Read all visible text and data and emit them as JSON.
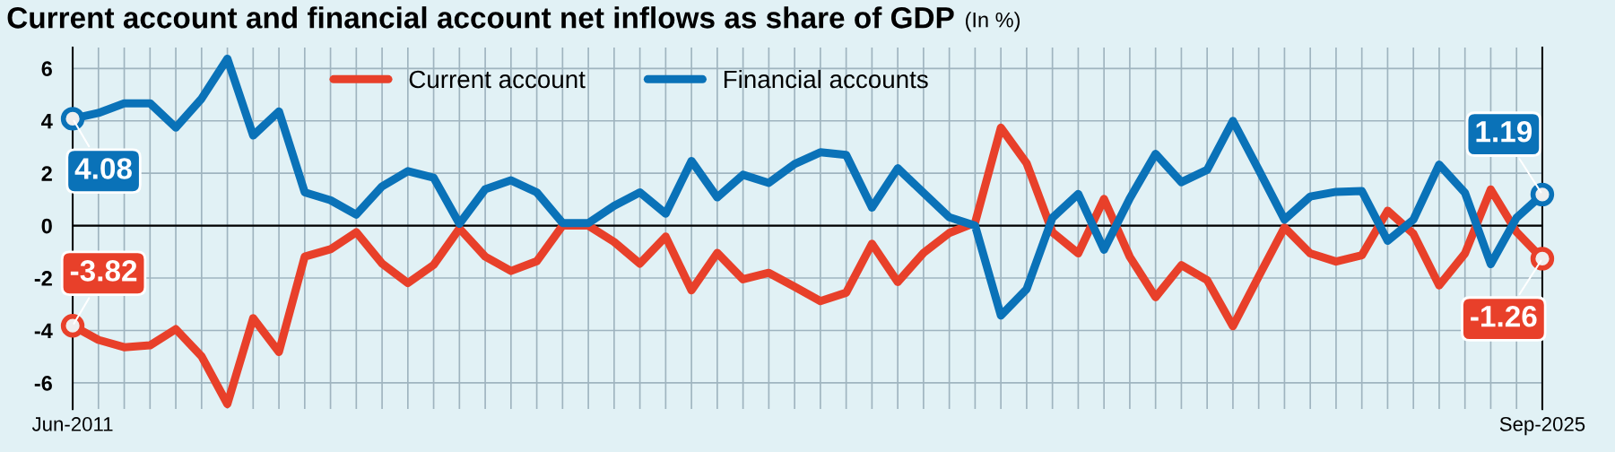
{
  "chart_data": {
    "type": "line",
    "title": "Current account and financial account net inflows as share of GDP",
    "subtitle": "(In %)",
    "categories": [
      "Jun-2011",
      null,
      null,
      null,
      null,
      null,
      null,
      null,
      null,
      null,
      null,
      null,
      null,
      null,
      null,
      null,
      null,
      null,
      null,
      null,
      null,
      null,
      null,
      null,
      null,
      null,
      null,
      null,
      null,
      null,
      null,
      null,
      null,
      null,
      null,
      null,
      null,
      null,
      null,
      null,
      null,
      null,
      null,
      null,
      null,
      null,
      null,
      null,
      null,
      null,
      null,
      null,
      null,
      null,
      null,
      null,
      null,
      "Sep-2025"
    ],
    "series": [
      {
        "name": "Current account",
        "color": "#e8402a",
        "values": [
          -3.82,
          -4.36,
          -4.64,
          -4.57,
          -3.95,
          -4.99,
          -6.81,
          -3.53,
          -4.82,
          -1.18,
          -0.9,
          -0.25,
          -1.45,
          -2.19,
          -1.5,
          -0.11,
          -1.18,
          -1.73,
          -1.36,
          0,
          0,
          -0.62,
          -1.45,
          -0.42,
          -2.47,
          -1.04,
          -2.05,
          -1.8,
          -2.33,
          -2.88,
          -2.56,
          -0.69,
          -2.15,
          -1.04,
          -0.28,
          0.11,
          3.74,
          2.38,
          -0.25,
          -1.06,
          1.02,
          -1.19,
          -2.73,
          -1.51,
          -2.08,
          -3.84,
          -1.94,
          -0.07,
          -1.06,
          -1.37,
          -1.13,
          0.57,
          -0.31,
          -2.28,
          -1.06,
          1.38,
          -0.24,
          -1.26
        ],
        "value_labels": [
          "-3.82",
          null,
          null,
          null,
          null,
          null,
          null,
          null,
          null,
          null,
          null,
          null,
          null,
          null,
          null,
          null,
          null,
          null,
          null,
          null,
          null,
          null,
          null,
          null,
          null,
          null,
          null,
          null,
          null,
          null,
          null,
          null,
          null,
          null,
          null,
          null,
          null,
          null,
          null,
          null,
          null,
          null,
          null,
          null,
          null,
          null,
          null,
          null,
          null,
          null,
          null,
          null,
          null,
          null,
          null,
          null,
          null,
          "-1.26"
        ]
      },
      {
        "name": "Financial accounts",
        "color": "#0a72b8",
        "values": [
          4.08,
          4.3,
          4.67,
          4.67,
          3.74,
          4.85,
          6.37,
          3.44,
          4.36,
          1.27,
          0.97,
          0.42,
          1.5,
          2.08,
          1.83,
          0.07,
          1.39,
          1.73,
          1.27,
          0.1,
          0.1,
          0.76,
          1.27,
          0.46,
          2.47,
          1.08,
          1.94,
          1.63,
          2.35,
          2.8,
          2.7,
          0.69,
          2.19,
          1.25,
          0.32,
          0,
          -3.43,
          -2.42,
          0.3,
          1.21,
          -0.92,
          1.04,
          2.74,
          1.66,
          2.13,
          4.0,
          2.13,
          0.23,
          1.11,
          1.29,
          1.32,
          -0.58,
          0.23,
          2.33,
          1.25,
          -1.47,
          0.3,
          1.19
        ],
        "value_labels": [
          "4.08",
          null,
          null,
          null,
          null,
          null,
          null,
          null,
          null,
          null,
          null,
          null,
          null,
          null,
          null,
          null,
          null,
          null,
          null,
          null,
          null,
          null,
          null,
          null,
          null,
          null,
          null,
          null,
          null,
          null,
          null,
          null,
          null,
          null,
          null,
          null,
          null,
          null,
          null,
          null,
          null,
          null,
          null,
          null,
          null,
          null,
          null,
          null,
          null,
          null,
          null,
          null,
          null,
          null,
          null,
          null,
          null,
          "1.19"
        ]
      }
    ],
    "ylim": [
      -7,
      6.8
    ],
    "yticks": [
      -6,
      -4,
      -2,
      0,
      2,
      4,
      6
    ],
    "ref_lines": [
      {
        "axis": "y",
        "value": 0,
        "color": "#000000"
      }
    ],
    "grid": true,
    "legend": "top"
  }
}
